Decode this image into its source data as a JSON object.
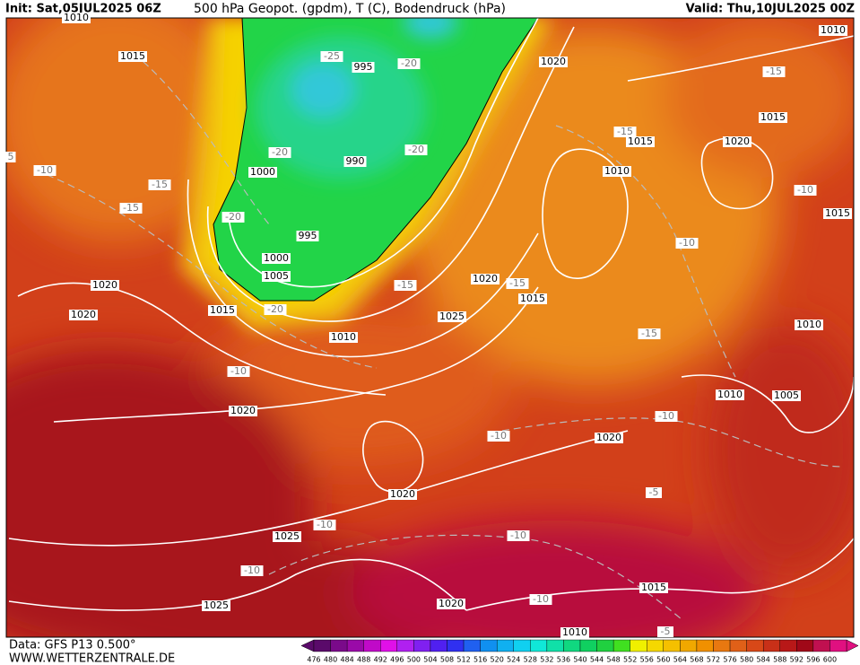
{
  "header": {
    "init": "Init: Sat,05JUL2025 06Z",
    "title": "500 hPa Geopot. (gpdm), T (C), Bodendruck (hPa)",
    "valid": "Valid: Thu,10JUL2025 00Z"
  },
  "footer": {
    "data": "Data: GFS P13 0.500°",
    "site": "WWW.WETTERZENTRALE.DE"
  },
  "pressure_labels": [
    "1010",
    "1015",
    "1000",
    "995",
    "990",
    "995",
    "1000",
    "1005",
    "1020",
    "1020",
    "1015",
    "1010",
    "1020",
    "1025",
    "1020",
    "1015",
    "1020",
    "1010",
    "1015",
    "1015",
    "1020",
    "1010",
    "1015",
    "1010",
    "1010",
    "1005",
    "1020",
    "1020",
    "1025",
    "1025",
    "1020",
    "1015",
    "1010"
  ],
  "temperature_labels": [
    "-25",
    "-20",
    "-20",
    "-20",
    "-20",
    "-15",
    "-15",
    "-10",
    "-15",
    "-15",
    "-10",
    "-10",
    "-15",
    "-15",
    "-20",
    "-15",
    "-10",
    "-10",
    "-10",
    "-5",
    "-10",
    "-10",
    "-10",
    "-10",
    "-5",
    "5"
  ],
  "colorbar": {
    "values": [
      476,
      480,
      484,
      488,
      492,
      496,
      500,
      504,
      508,
      512,
      516,
      520,
      524,
      528,
      532,
      536,
      540,
      544,
      548,
      552,
      556,
      560,
      564,
      568,
      572,
      576,
      580,
      584,
      588,
      592,
      596,
      600
    ],
    "colors": [
      "#5a0a6a",
      "#7a0a8a",
      "#9a0aa8",
      "#c00ac8",
      "#e010e8",
      "#b020f0",
      "#8020f0",
      "#5020f0",
      "#3030f0",
      "#2060f0",
      "#1090f0",
      "#10b0f0",
      "#10d0f0",
      "#10e8d8",
      "#10e0a8",
      "#10d880",
      "#10d060",
      "#20d040",
      "#40e020",
      "#f0f000",
      "#f5d800",
      "#f5c000",
      "#f0a800",
      "#f09000",
      "#e87810",
      "#e06018",
      "#d84818",
      "#c83018",
      "#b81818",
      "#a00818",
      "#c01050",
      "#e01080"
    ]
  }
}
